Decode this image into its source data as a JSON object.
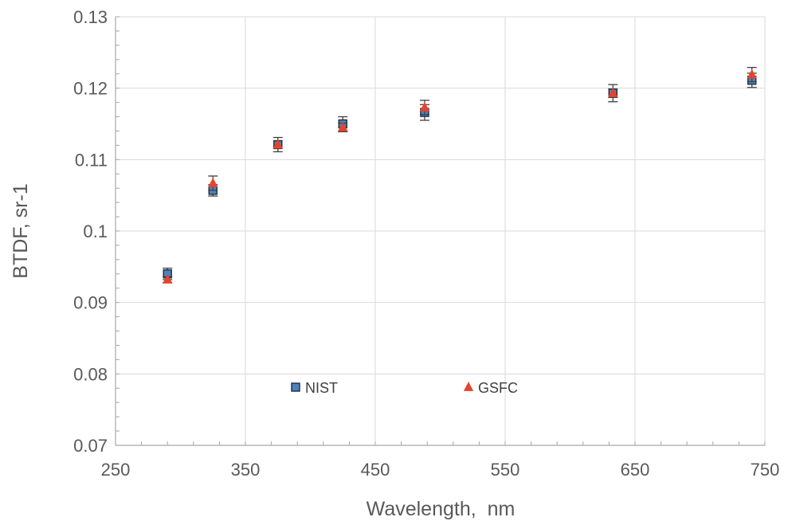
{
  "chart_data": {
    "type": "scatter",
    "title": "",
    "xlabel": "Wavelength,  nm",
    "ylabel": "BTDF, sr-1",
    "xlim": [
      250,
      750
    ],
    "ylim": [
      0.07,
      0.13
    ],
    "x_ticks": [
      "250",
      "350",
      "450",
      "550",
      "650",
      "750"
    ],
    "y_ticks": [
      "0.07",
      "0.08",
      "0.09",
      "0.1",
      "0.11",
      "0.12",
      "0.13"
    ],
    "grid": true,
    "legend_position": "inside-bottom",
    "series": [
      {
        "name": "NIST",
        "marker": "square",
        "color": "#4f81bd",
        "edge_color": "#1f2d3d",
        "points": [
          {
            "x": 290,
            "y": 0.094,
            "err": 0.0008
          },
          {
            "x": 325,
            "y": 0.1057,
            "err": 0.0008
          },
          {
            "x": 375,
            "y": 0.1121,
            "err": 0.001
          },
          {
            "x": 425,
            "y": 0.115,
            "err": 0.001
          },
          {
            "x": 488,
            "y": 0.1166,
            "err": 0.0011
          },
          {
            "x": 633,
            "y": 0.1193,
            "err": 0.0012
          },
          {
            "x": 740,
            "y": 0.1211,
            "err": 0.001
          }
        ]
      },
      {
        "name": "GSFC",
        "marker": "triangle",
        "color": "#e8432a",
        "points": [
          {
            "x": 290,
            "y": 0.0932,
            "err": 0.0004
          },
          {
            "x": 325,
            "y": 0.1067,
            "err": 0.001
          },
          {
            "x": 375,
            "y": 0.1121,
            "err": 0.0005
          },
          {
            "x": 425,
            "y": 0.1145,
            "err": 0.0006
          },
          {
            "x": 488,
            "y": 0.1173,
            "err": 0.001
          },
          {
            "x": 633,
            "y": 0.1193,
            "err": 0.0006
          },
          {
            "x": 740,
            "y": 0.1219,
            "err": 0.001
          }
        ]
      }
    ]
  }
}
